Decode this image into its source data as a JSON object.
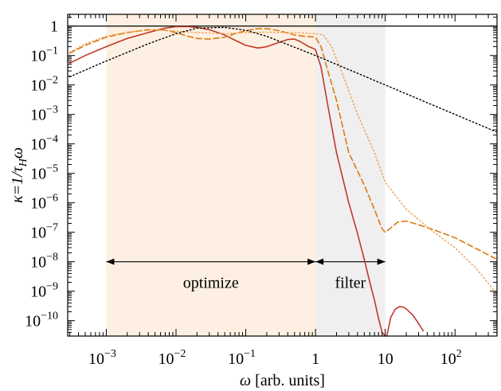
{
  "chart_data": {
    "type": "line",
    "title": "",
    "xlabel": {
      "symbol": "ω",
      "units": " [arb. units]"
    },
    "ylabel": {
      "symbol": "κ",
      "rest": "=1/τ",
      "sub": "H",
      "tail": "ω"
    },
    "xscale": "log",
    "yscale": "log",
    "xlim": [
      0.00028,
      400
    ],
    "ylim": [
      3e-11,
      2.5
    ],
    "grid": false,
    "legend": "none",
    "x_ticks": [
      {
        "value": 0.001,
        "base": "10",
        "exp": "−3"
      },
      {
        "value": 0.01,
        "base": "10",
        "exp": "−2"
      },
      {
        "value": 0.1,
        "base": "10",
        "exp": "−1"
      },
      {
        "value": 1,
        "base": "1",
        "exp": ""
      },
      {
        "value": 10,
        "base": "10",
        "exp": ""
      },
      {
        "value": 100,
        "base": "10",
        "exp": "2"
      }
    ],
    "y_ticks": [
      {
        "value": 1,
        "base": "1",
        "exp": ""
      },
      {
        "value": 0.1,
        "base": "10",
        "exp": "−1"
      },
      {
        "value": 0.01,
        "base": "10",
        "exp": "−2"
      },
      {
        "value": 0.001,
        "base": "10",
        "exp": "−3"
      },
      {
        "value": 0.0001,
        "base": "10",
        "exp": "−4"
      },
      {
        "value": 1e-05,
        "base": "10",
        "exp": "−5"
      },
      {
        "value": 1e-06,
        "base": "10",
        "exp": "−6"
      },
      {
        "value": 1e-07,
        "base": "10",
        "exp": "−7"
      },
      {
        "value": 1e-08,
        "base": "10",
        "exp": "−8"
      },
      {
        "value": 1e-09,
        "base": "10",
        "exp": "−9"
      },
      {
        "value": 1e-10,
        "base": "10",
        "exp": "−10"
      }
    ],
    "regions": [
      {
        "label": "optimize",
        "x0": 0.001,
        "x1": 1,
        "color": "#fdf0e2",
        "arrow_y": 1e-08
      },
      {
        "label": "filter",
        "x0": 1,
        "x1": 10,
        "color": "#efefef",
        "arrow_y": 1e-08
      }
    ],
    "reference_lines": [
      {
        "y": 1,
        "color": "#000000",
        "style": "solid"
      }
    ],
    "series": [
      {
        "color": "#c0392b",
        "style": "solid",
        "x": [
          0.0003,
          0.0005,
          0.001,
          0.002,
          0.004,
          0.007,
          0.01,
          0.015,
          0.02,
          0.03,
          0.05,
          0.07,
          0.1,
          0.15,
          0.2,
          0.3,
          0.4,
          0.5,
          0.6,
          0.7,
          0.8,
          0.9,
          1.0,
          1.2,
          1.5,
          2,
          3,
          4,
          5,
          6,
          7,
          8,
          9,
          10
        ],
        "y": [
          0.055,
          0.1,
          0.2,
          0.38,
          0.6,
          0.85,
          0.95,
          0.95,
          0.9,
          0.75,
          0.5,
          0.33,
          0.22,
          0.18,
          0.2,
          0.28,
          0.35,
          0.36,
          0.3,
          0.24,
          0.2,
          0.18,
          0.16,
          0.04,
          0.002,
          5e-05,
          1e-06,
          9e-08,
          1.2e-08,
          2e-09,
          5e-10,
          1.2e-10,
          4e-11,
          3e-11
        ]
      },
      {
        "color": "#c0392b",
        "style": "solid",
        "x": [
          10.5,
          12,
          14,
          16,
          18,
          20,
          25,
          30,
          35
        ],
        "y": [
          3e-11,
          1.3e-10,
          2.5e-10,
          3e-10,
          2.9e-10,
          2.5e-10,
          1.5e-10,
          8e-11,
          4.5e-11
        ]
      },
      {
        "color": "#d97b10",
        "style": "dashed",
        "x": [
          0.0003,
          0.0005,
          0.001,
          0.002,
          0.004,
          0.007,
          0.01,
          0.015,
          0.02,
          0.03,
          0.05,
          0.07,
          0.1,
          0.15,
          0.2,
          0.3,
          0.5,
          0.7,
          1.0,
          1.2,
          1.5,
          2,
          3,
          5,
          7,
          9,
          10,
          12,
          15,
          20,
          30,
          50,
          100,
          200,
          400
        ],
        "y": [
          0.12,
          0.22,
          0.42,
          0.6,
          0.75,
          0.72,
          0.6,
          0.45,
          0.38,
          0.36,
          0.42,
          0.55,
          0.7,
          0.82,
          0.82,
          0.7,
          0.5,
          0.45,
          0.42,
          0.2,
          0.03,
          0.003,
          5e-05,
          4e-06,
          6e-07,
          1.3e-07,
          1e-07,
          1.4e-07,
          2.2e-07,
          2.4e-07,
          1.8e-07,
          1.2e-07,
          6.5e-08,
          2.8e-08,
          1.2e-08
        ]
      },
      {
        "color": "#f0a050",
        "style": "dotted",
        "x": [
          0.0003,
          0.0005,
          0.001,
          0.002,
          0.004,
          0.007,
          0.01,
          0.02,
          0.05,
          0.1,
          0.2,
          0.5,
          1.0,
          1.3,
          1.7,
          2.5,
          4,
          7,
          10,
          20,
          50,
          100,
          200,
          400
        ],
        "y": [
          0.13,
          0.25,
          0.45,
          0.62,
          0.72,
          0.72,
          0.68,
          0.6,
          0.55,
          0.6,
          0.62,
          0.6,
          0.55,
          0.5,
          0.2,
          0.02,
          0.001,
          5e-05,
          5e-06,
          6e-07,
          1e-07,
          3e-08,
          6e-09,
          8e-10
        ]
      },
      {
        "color": "#000000",
        "style": "dotted",
        "x": [
          0.0003,
          0.001,
          0.004,
          0.01,
          0.02,
          0.05,
          0.1,
          0.2,
          1.0,
          10,
          100,
          400
        ],
        "y": [
          0.019,
          0.065,
          0.25,
          0.55,
          0.85,
          0.9,
          0.72,
          0.45,
          0.1,
          0.01,
          0.001,
          0.00025
        ]
      }
    ]
  }
}
